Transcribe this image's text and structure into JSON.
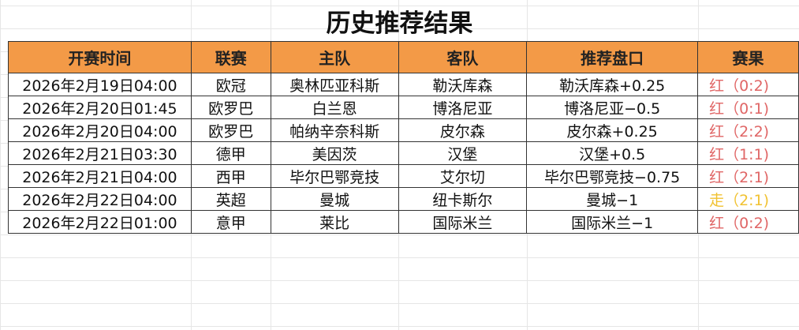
{
  "title": "历史推荐结果",
  "headers": [
    "开赛时间",
    "联赛",
    "主队",
    "客队",
    "推荐盘口",
    "赛果"
  ],
  "colors": {
    "header_bg": "#f39a47",
    "red": "#e06666",
    "push": "#f1c232"
  },
  "rows": [
    [
      "2026年2月19日04:00",
      "欧冠",
      "奥林匹亚科斯",
      "勒沃库森",
      "勒沃库森+0.25",
      "红（0:2)",
      "red"
    ],
    [
      "2026年2月20日01:45",
      "欧罗巴",
      "白兰恩",
      "博洛尼亚",
      "博洛尼亚−0.5",
      "红（0:1)",
      "red"
    ],
    [
      "2026年2月20日04:00",
      "欧罗巴",
      "帕纳辛奈科斯",
      "皮尔森",
      "皮尔森+0.25",
      "红（2:2)",
      "red"
    ],
    [
      "2026年2月21日03:30",
      "德甲",
      "美因茨",
      "汉堡",
      "汉堡+0.5",
      "红（1:1)",
      "red"
    ],
    [
      "2026年2月21日04:00",
      "西甲",
      "毕尔巴鄂竞技",
      "艾尔切",
      "毕尔巴鄂竞技−0.75",
      "红（2:1)",
      "red"
    ],
    [
      "2026年2月22日04:00",
      "英超",
      "曼城",
      "纽卡斯尔",
      "曼城−1",
      "走（2:1)",
      "push"
    ],
    [
      "2026年2月22日01:00",
      "意甲",
      "莱比",
      "国际米兰",
      "国际米兰−1",
      "红（0:2)",
      "red"
    ]
  ]
}
